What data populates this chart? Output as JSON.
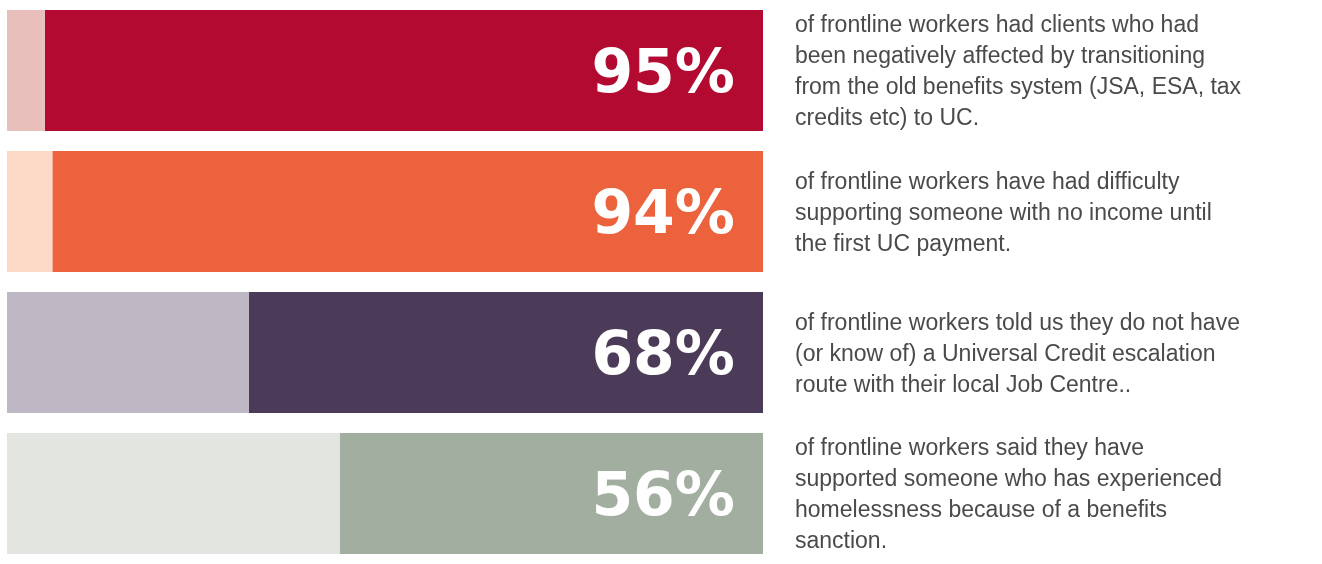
{
  "chart_data": {
    "type": "bar",
    "orientation": "horizontal",
    "stacked": true,
    "xlim": [
      100,
      0
    ],
    "tick_labels": "y",
    "grid": false,
    "categories": [
      "of frontline workers had clients who had been negatively affected by transitioning from the old benefits system (JSA, ESA, tax credits etc) to UC.",
      "of frontline workers have had difficulty supporting someone with no income until the first UC payment.",
      "of frontline workers told us they do not have (or know of) a Universal Credit escalation route with their local Job Centre..",
      "of frontline workers said they have supported someone who has experienced homelessness because of a benefits sanction."
    ],
    "series": [
      {
        "values": [
          95,
          94,
          68,
          56
        ],
        "colors": [
          "#b20a30",
          "#ec623c",
          "#4b3b58",
          "#a2ae9f"
        ],
        "value_labels": [
          "95%",
          "94%",
          "68%",
          "56%"
        ]
      },
      {
        "values": [
          5,
          6,
          32,
          44
        ],
        "colors": [
          "#e8bfba",
          "#fcd9c6",
          "#beb7c4",
          "#e3e5e1"
        ]
      }
    ]
  }
}
